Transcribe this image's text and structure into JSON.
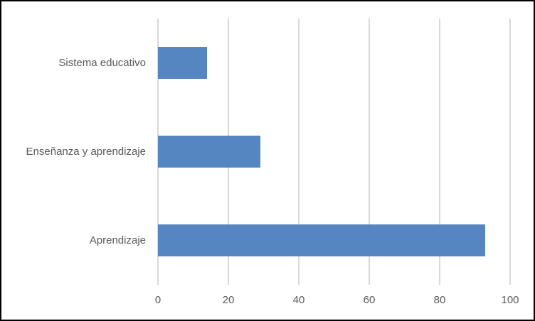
{
  "chart_data": {
    "type": "bar",
    "orientation": "horizontal",
    "title": "",
    "xlabel": "",
    "ylabel": "",
    "categories": [
      "Sistema educativo",
      "Enseñanza y aprendizaje",
      "Aprendizaje"
    ],
    "values": [
      14,
      29,
      93
    ],
    "xlim": [
      0,
      100
    ],
    "xticks": [
      0,
      20,
      40,
      60,
      80,
      100
    ],
    "grid": true,
    "legend": false,
    "colors": {
      "bar": "#5586c2",
      "gridline": "#d9d9d9",
      "label_text": "#595959",
      "border": "#000000",
      "background": "#ffffff"
    }
  }
}
